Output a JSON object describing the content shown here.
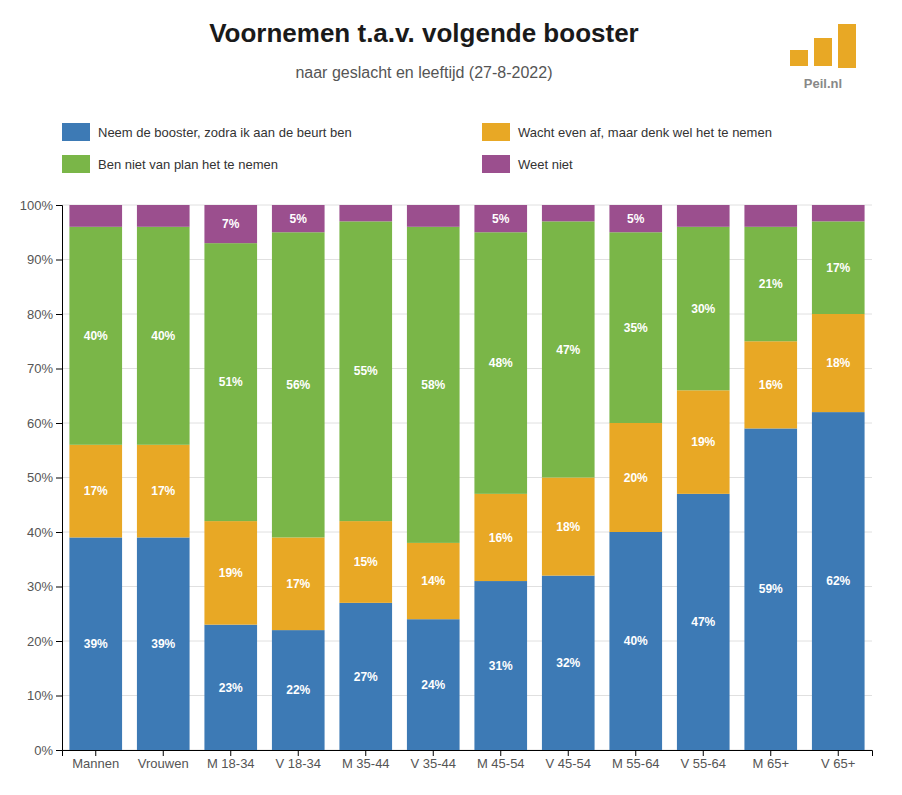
{
  "chart_data": {
    "type": "bar",
    "stacked": true,
    "title": "Voornemen t.a.v. volgende booster",
    "subtitle": "naar geslacht en leeftijd (27-8-2022)",
    "annotations": [
      "Peil.nl"
    ],
    "categories": [
      "Mannen",
      "Vrouwen",
      "M 18-34",
      "V 18-34",
      "M 35-44",
      "V 35-44",
      "M 45-54",
      "V 45-54",
      "M 55-64",
      "V 55-64",
      "M 65+",
      "V 65+"
    ],
    "series": [
      {
        "name": "Neem de booster, zodra ik aan de beurt ben",
        "color": "#3d7ab5",
        "values": [
          39,
          39,
          23,
          22,
          27,
          24,
          31,
          32,
          40,
          47,
          59,
          62
        ],
        "value_labels": [
          "39%",
          "39%",
          "23%",
          "22%",
          "27%",
          "24%",
          "31%",
          "32%",
          "40%",
          "47%",
          "59%",
          "62%"
        ]
      },
      {
        "name": "Wacht even af, maar denk wel het te nemen",
        "color": "#e8a825",
        "values": [
          17,
          17,
          19,
          17,
          15,
          14,
          16,
          18,
          20,
          19,
          16,
          18
        ],
        "value_labels": [
          "17%",
          "17%",
          "19%",
          "17%",
          "15%",
          "14%",
          "16%",
          "18%",
          "20%",
          "19%",
          "16%",
          "18%"
        ]
      },
      {
        "name": "Ben niet van plan het te nemen",
        "color": "#7ab648",
        "values": [
          40,
          40,
          51,
          56,
          55,
          58,
          48,
          47,
          35,
          30,
          21,
          17
        ],
        "value_labels": [
          "40%",
          "40%",
          "51%",
          "56%",
          "55%",
          "58%",
          "48%",
          "47%",
          "35%",
          "30%",
          "21%",
          "17%"
        ]
      },
      {
        "name": "Weet niet",
        "color": "#9b4f8e",
        "values": [
          4,
          4,
          7,
          5,
          3,
          4,
          5,
          3,
          5,
          4,
          4,
          3
        ],
        "value_labels": [
          null,
          null,
          "7%",
          "5%",
          null,
          null,
          "5%",
          null,
          "5%",
          null,
          null,
          null
        ]
      }
    ],
    "ylim": [
      0,
      100
    ],
    "yticks": [
      {
        "value": 0,
        "label": "0%"
      },
      {
        "value": 10,
        "label": "10%"
      },
      {
        "value": 20,
        "label": "20%"
      },
      {
        "value": 30,
        "label": "30%"
      },
      {
        "value": 40,
        "label": "40%"
      },
      {
        "value": 50,
        "label": "50%"
      },
      {
        "value": 60,
        "label": "60%"
      },
      {
        "value": 70,
        "label": "70%"
      },
      {
        "value": 80,
        "label": "80%"
      },
      {
        "value": 90,
        "label": "90%"
      },
      {
        "value": 100,
        "label": "100%"
      }
    ],
    "grid": true,
    "legend": "top",
    "data_labels": true
  }
}
